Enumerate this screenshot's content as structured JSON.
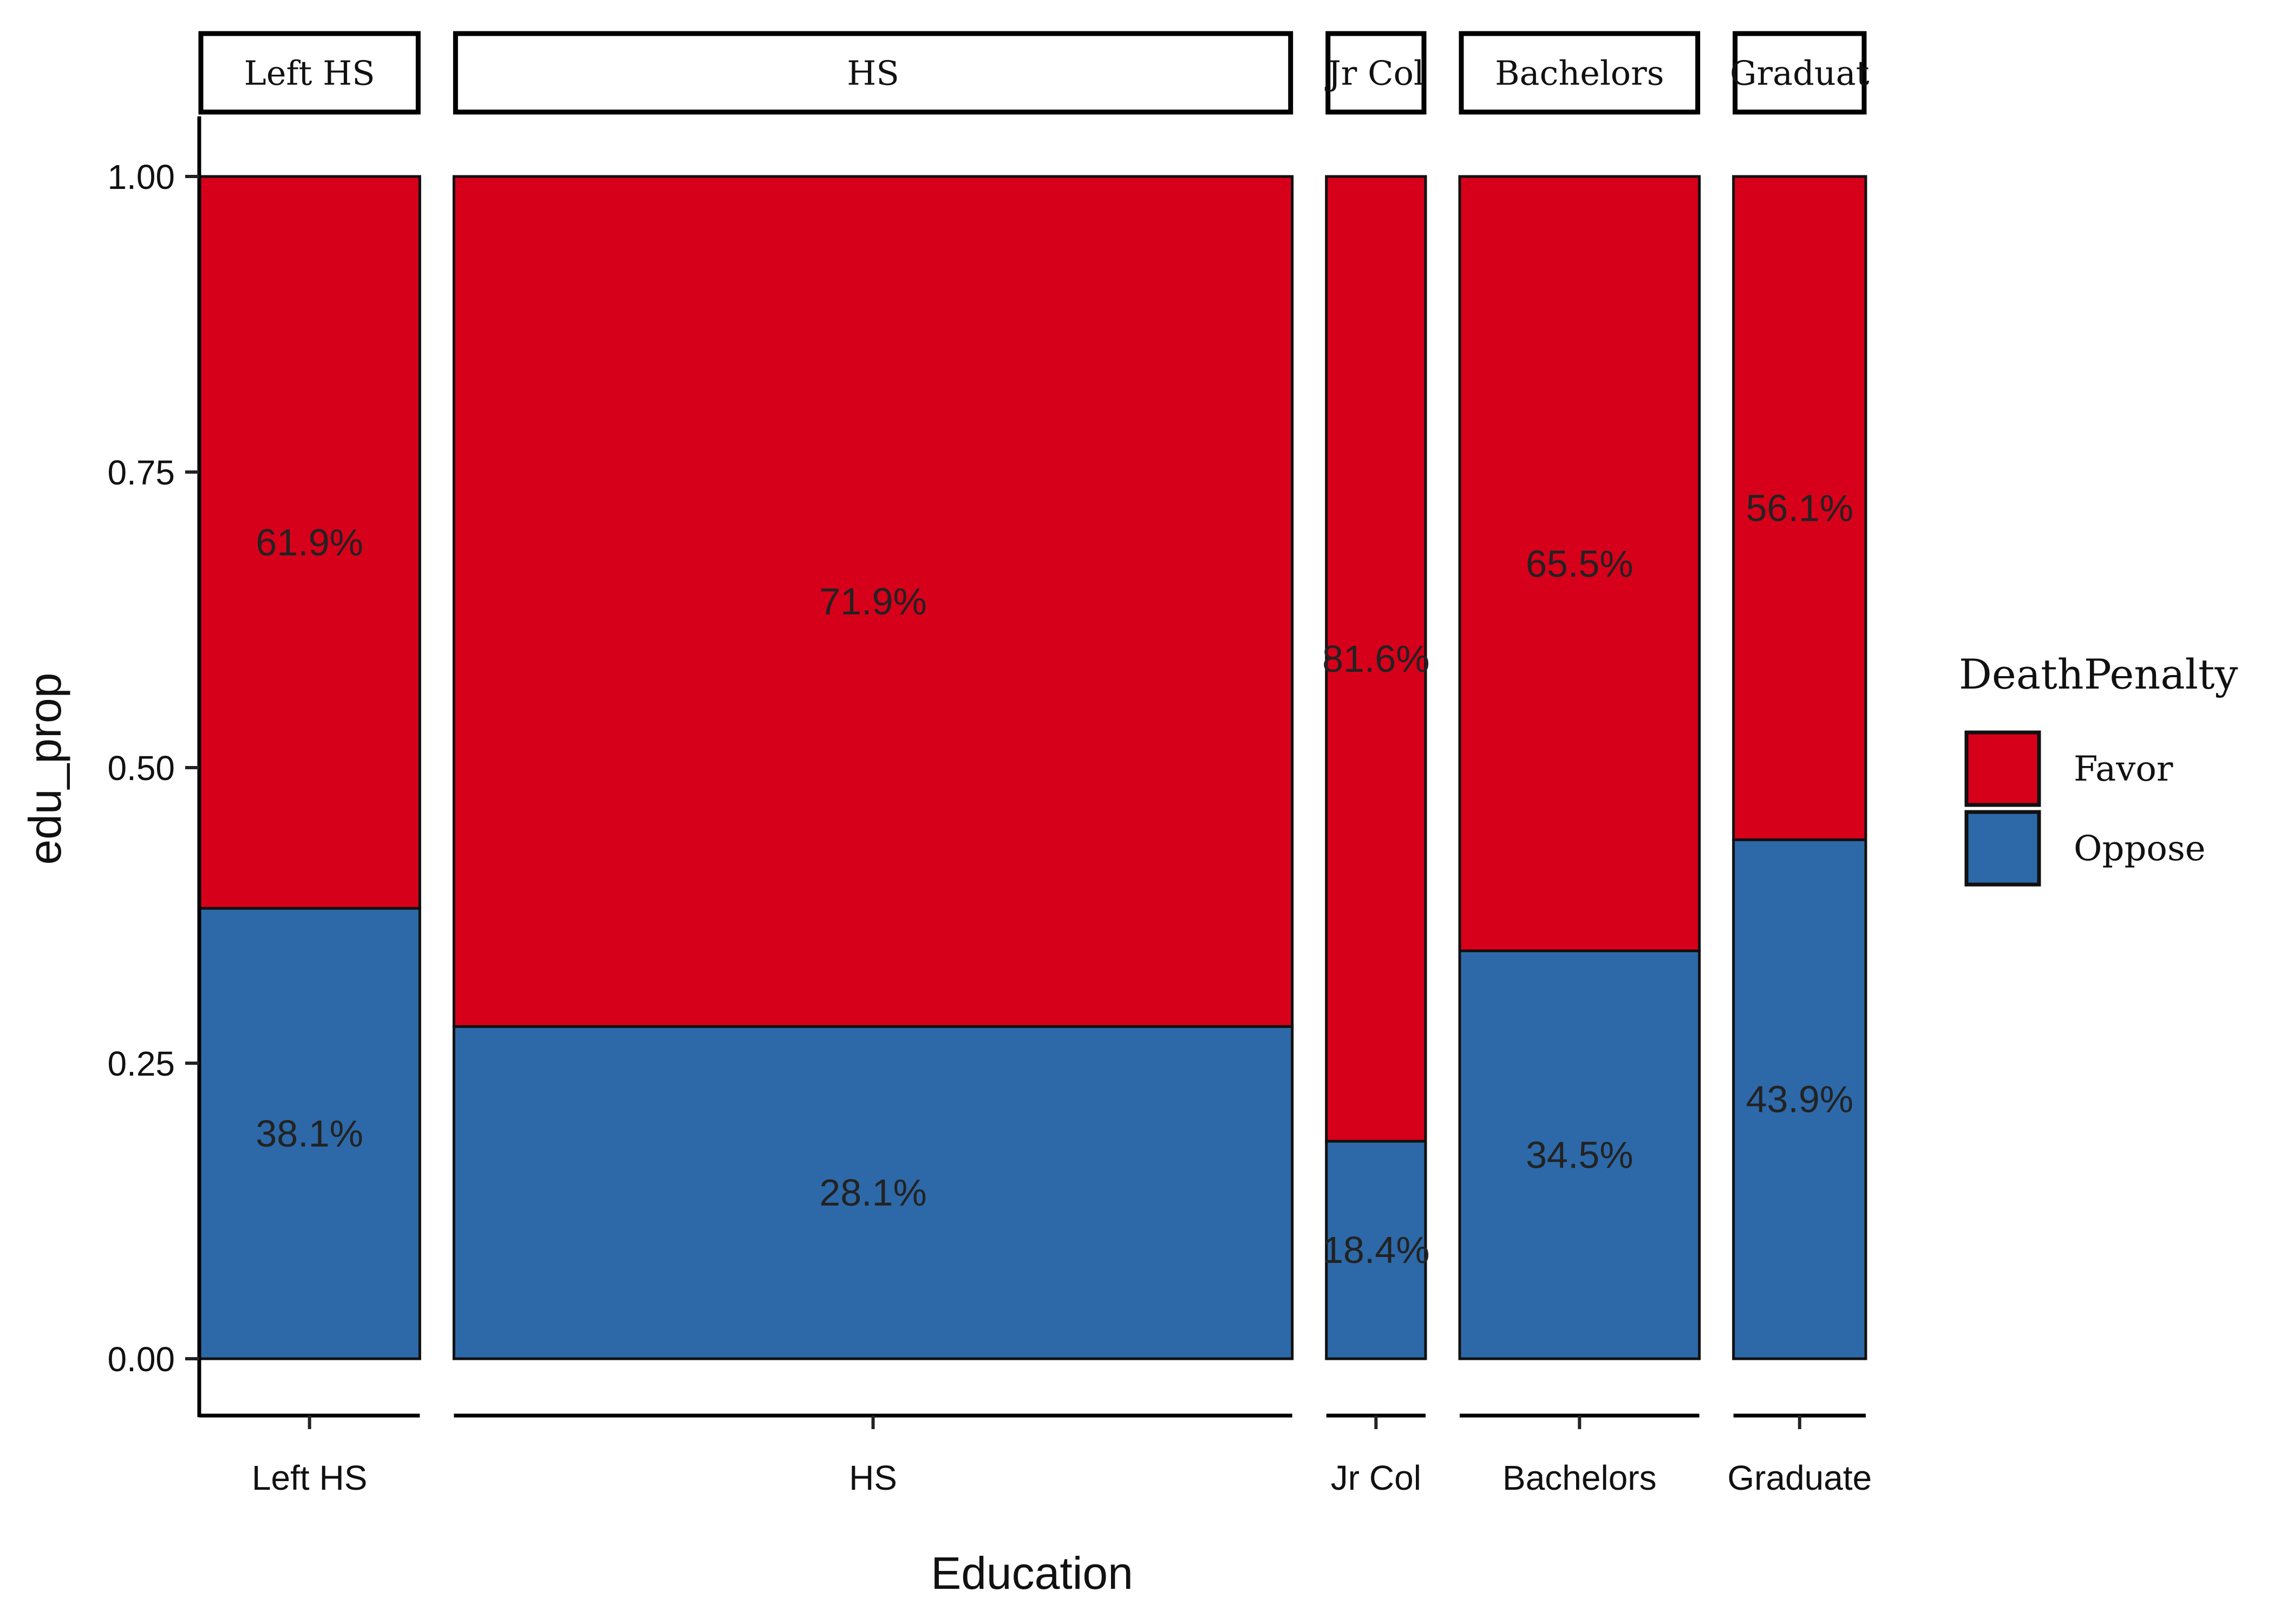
{
  "chart_data": {
    "type": "bar",
    "subtype": "mosaic (variable-width stacked proportions, faceted by education)",
    "xlabel": "Education",
    "ylabel": "edu_prop",
    "ylim": [
      0,
      1
    ],
    "y_ticks": [
      "0.00",
      "0.25",
      "0.50",
      "0.75",
      "1.00"
    ],
    "facets": [
      {
        "name": "Left HS",
        "strip": "Left HS",
        "tick": "Left HS",
        "width_share": 0.1327,
        "favor": 0.619,
        "oppose": 0.381,
        "favor_label": "61.9%",
        "oppose_label": "38.1%"
      },
      {
        "name": "HS",
        "strip": "HS",
        "tick": "HS",
        "width_share": 0.5044,
        "favor": 0.719,
        "oppose": 0.281,
        "favor_label": "71.9%",
        "oppose_label": "28.1%"
      },
      {
        "name": "Jr Col",
        "strip": "Jr Col",
        "tick": "Jr Col",
        "width_share": 0.0597,
        "favor": 0.816,
        "oppose": 0.184,
        "favor_label": "81.6%",
        "oppose_label": "18.4%"
      },
      {
        "name": "Bachelors",
        "strip": "Bachelors",
        "tick": "Bachelors",
        "width_share": 0.1442,
        "favor": 0.655,
        "oppose": 0.345,
        "favor_label": "65.5%",
        "oppose_label": "34.5%"
      },
      {
        "name": "Graduate",
        "strip": "Graduat",
        "tick": "Graduate",
        "width_share": 0.0796,
        "favor": 0.561,
        "oppose": 0.439,
        "favor_label": "56.1%",
        "oppose_label": "43.9%"
      }
    ],
    "legend": {
      "title": "DeathPenalty",
      "position": "right",
      "entries": [
        {
          "name": "Favor",
          "color": "#D7001A"
        },
        {
          "name": "Oppose",
          "color": "#2D69A8"
        }
      ]
    },
    "colors": {
      "favor": "#D7001A",
      "oppose": "#2D69A8"
    }
  }
}
